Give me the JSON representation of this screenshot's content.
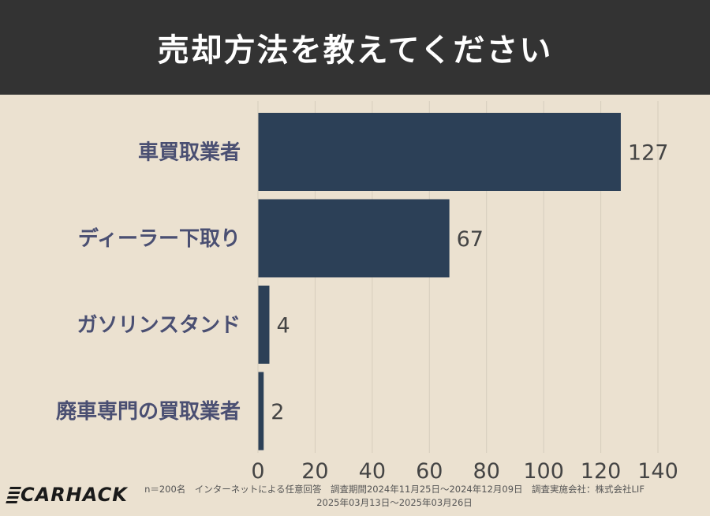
{
  "header": {
    "title": "売却方法を教えてください"
  },
  "chart_data": {
    "type": "bar",
    "orientation": "horizontal",
    "categories": [
      "車買取業者",
      "ディーラー下取り",
      "ガソリンスタンド",
      "廃車専門の買取業者"
    ],
    "values": [
      127,
      67,
      4,
      2
    ],
    "xlim": [
      0,
      140
    ],
    "xticks": [
      0,
      20,
      40,
      60,
      80,
      100,
      120,
      140
    ],
    "grid": "vertical",
    "bar_color": "#2c4057",
    "label_color": "#4a4f72",
    "gridline_color": "#d6cdbd"
  },
  "footer": {
    "line1": "n＝200名　インターネットによる任意回答　調査期間2024年11月25日〜2024年12月09日　調査実施会社：株式会社LIF",
    "line2": "2025年03月13日〜2025年03月26日"
  },
  "logo": {
    "text": "CARHACK"
  },
  "colors": {
    "background": "#ebe1d0",
    "header_bg": "#333333"
  }
}
